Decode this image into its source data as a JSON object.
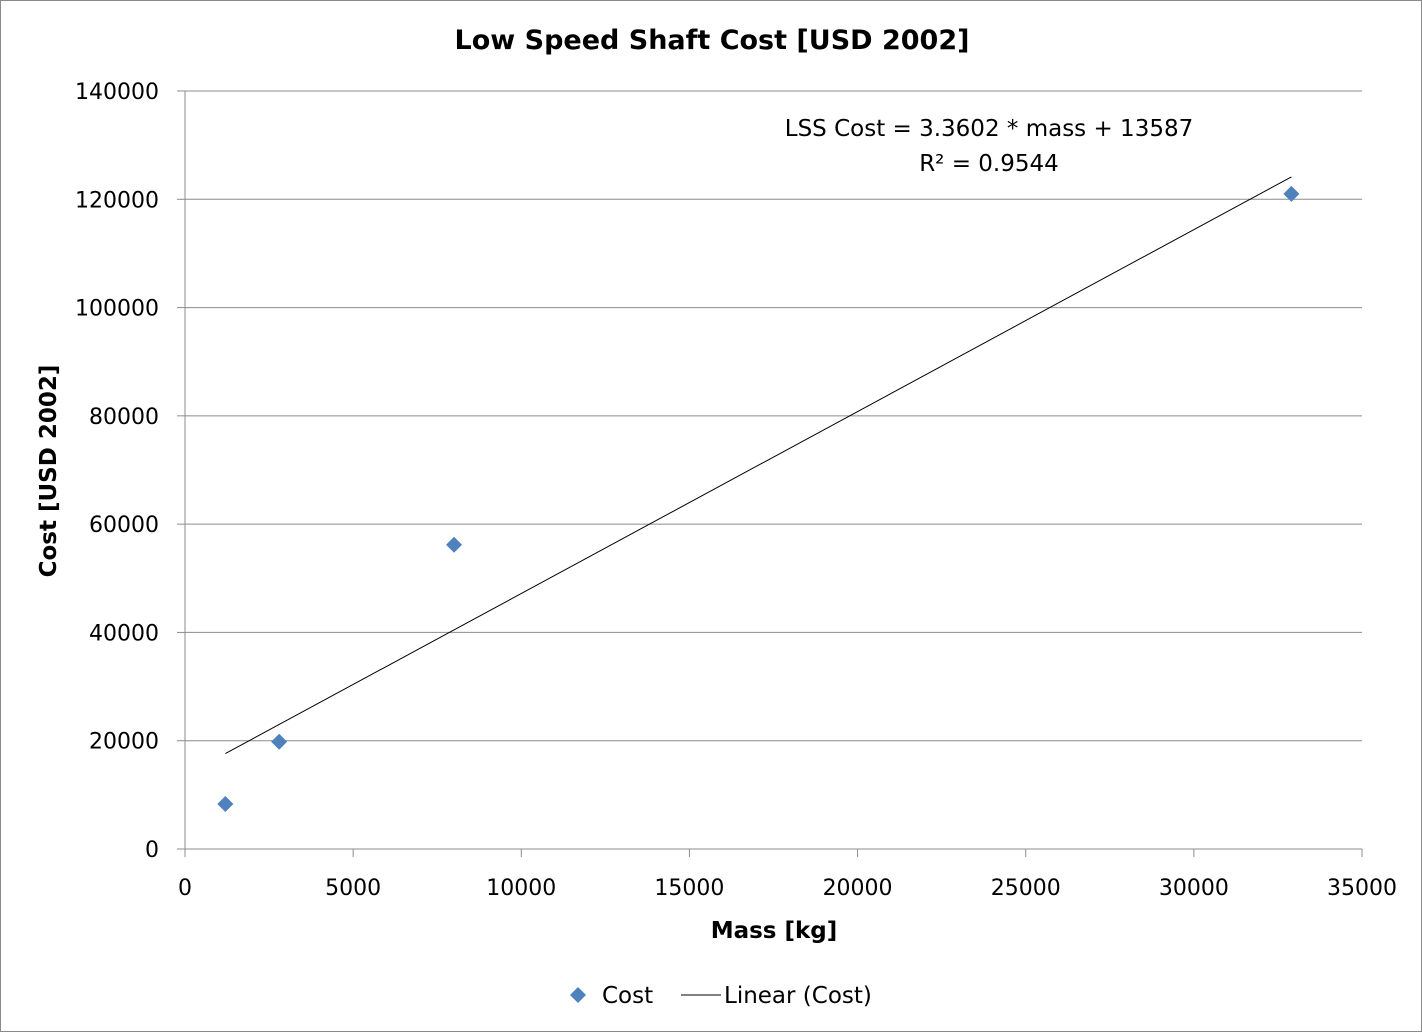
{
  "chart_data": {
    "type": "scatter",
    "title": "Low Speed Shaft Cost [USD 2002]",
    "xlabel": "Mass [kg]",
    "ylabel": "Cost [USD 2002]",
    "xlim": [
      0,
      35000
    ],
    "ylim": [
      0,
      140000
    ],
    "x_ticks": [
      "0",
      "5000",
      "10000",
      "15000",
      "20000",
      "25000",
      "30000",
      "35000"
    ],
    "y_ticks": [
      "0",
      "20000",
      "40000",
      "60000",
      "80000",
      "100000",
      "120000",
      "140000"
    ],
    "grid": {
      "horizontal": true,
      "vertical": false
    },
    "series": [
      {
        "name": "Cost",
        "marker": "diamond",
        "color": "#4f81bd",
        "points": [
          {
            "x": 1200,
            "y": 8300
          },
          {
            "x": 2800,
            "y": 19800
          },
          {
            "x": 8000,
            "y": 56200
          },
          {
            "x": 32900,
            "y": 121000
          }
        ]
      }
    ],
    "trendline": {
      "name": "Linear (Cost)",
      "type": "linear",
      "slope": 3.3602,
      "intercept": 13587,
      "x_range": [
        1200,
        32900
      ],
      "color": "#000000"
    },
    "annotation": {
      "line1": "LSS Cost = 3.3602 * mass + 13587",
      "line2": "R² = 0.9544"
    },
    "legend": {
      "position": "bottom",
      "items": [
        "Cost",
        "Linear (Cost)"
      ]
    }
  }
}
